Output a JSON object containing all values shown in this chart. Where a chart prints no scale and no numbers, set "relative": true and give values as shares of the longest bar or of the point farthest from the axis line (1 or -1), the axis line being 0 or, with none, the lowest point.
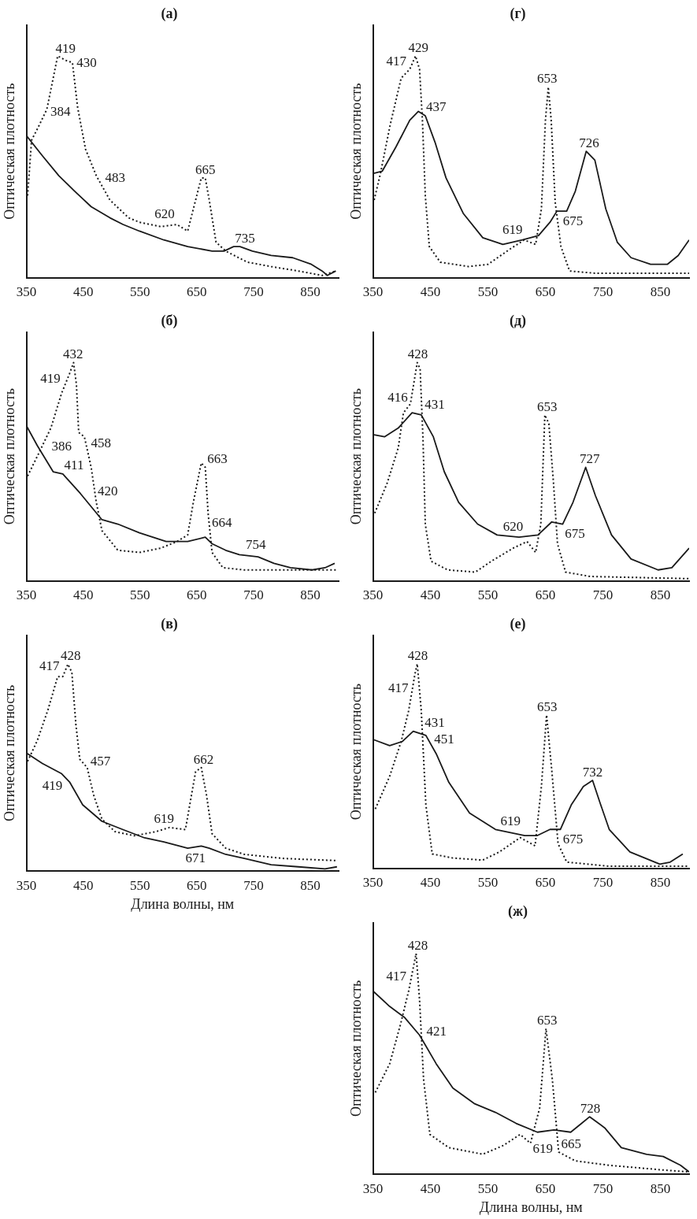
{
  "chart_data": [
    {
      "type": "line",
      "title": "(а)",
      "ylabel": "Оптическая плотность",
      "xlim": [
        350,
        900
      ],
      "xticks": [
        350,
        450,
        550,
        650,
        750,
        850
      ],
      "relative": true,
      "marker": "none",
      "series": [
        {
          "color": "#1a1a1a",
          "line_style": "dotted",
          "x": [
            352,
            359,
            371,
            386,
            405,
            419,
            431,
            440,
            454,
            473,
            497,
            530,
            549,
            587,
            615,
            634,
            648,
            658,
            665,
            672,
            684,
            701,
            739,
            781,
            829,
            871,
            895
          ],
          "values": [
            0.37,
            0.62,
            0.68,
            0.76,
            1,
            0.98,
            0.97,
            0.77,
            0.58,
            0.46,
            0.35,
            0.27,
            0.25,
            0.23,
            0.24,
            0.21,
            0.35,
            0.45,
            0.45,
            0.35,
            0.16,
            0.12,
            0.07,
            0.05,
            0.03,
            0.01,
            0.03
          ]
        },
        {
          "color": "#1a1a1a",
          "line_style": "solid",
          "x": [
            350,
            378,
            407,
            435,
            464,
            497,
            520,
            549,
            592,
            634,
            677,
            698,
            715,
            726,
            748,
            781,
            819,
            852,
            871,
            880,
            895
          ],
          "values": [
            0.64,
            0.55,
            0.46,
            0.39,
            0.32,
            0.27,
            0.24,
            0.21,
            0.17,
            0.14,
            0.12,
            0.12,
            0.14,
            0.14,
            0.12,
            0.1,
            0.09,
            0.06,
            0.03,
            0.01,
            0.03
          ]
        }
      ],
      "annotations": [
        {
          "text": "384",
          "x": 384,
          "y": 0.75
        },
        {
          "text": "419",
          "x": 419,
          "y": 0.98
        },
        {
          "text": "430",
          "x": 430,
          "y": 0.97
        },
        {
          "text": "483",
          "x": 483,
          "y": 0.42
        },
        {
          "text": "620",
          "x": 620,
          "y": 0.24
        },
        {
          "text": "665",
          "x": 665,
          "y": 0.45
        },
        {
          "text": "735",
          "x": 735,
          "y": 0.14
        }
      ]
    },
    {
      "type": "line",
      "title": "(б)",
      "ylabel": "Оптическая плотность",
      "xlim": [
        350,
        900
      ],
      "xticks": [
        350,
        450,
        550,
        650,
        750,
        850
      ],
      "relative": true,
      "marker": "none",
      "series": [
        {
          "color": "#1a1a1a",
          "line_style": "dotted",
          "x": [
            352,
            369,
            393,
            412,
            426,
            433,
            438,
            442,
            452,
            464,
            473,
            483,
            511,
            549,
            587,
            615,
            634,
            644,
            658,
            665,
            670,
            677,
            696,
            734,
            805,
            897
          ],
          "values": [
            0.48,
            0.57,
            0.7,
            0.86,
            0.95,
            1,
            0.9,
            0.68,
            0.66,
            0.52,
            0.36,
            0.23,
            0.14,
            0.13,
            0.15,
            0.18,
            0.21,
            0.36,
            0.54,
            0.52,
            0.31,
            0.13,
            0.06,
            0.05,
            0.05,
            0.05
          ]
        },
        {
          "color": "#1a1a1a",
          "line_style": "solid",
          "x": [
            350,
            369,
            397,
            414,
            445,
            483,
            511,
            549,
            596,
            634,
            665,
            677,
            701,
            725,
            758,
            786,
            815,
            853,
            876,
            893
          ],
          "values": [
            0.71,
            0.62,
            0.5,
            0.49,
            0.4,
            0.28,
            0.26,
            0.22,
            0.18,
            0.18,
            0.2,
            0.17,
            0.14,
            0.12,
            0.11,
            0.08,
            0.06,
            0.05,
            0.06,
            0.08
          ]
        }
      ],
      "annotations": [
        {
          "text": "386",
          "x": 386,
          "y": 0.62
        },
        {
          "text": "419",
          "x": 419,
          "y": 0.88
        },
        {
          "text": "432",
          "x": 432,
          "y": 1
        },
        {
          "text": "458",
          "x": 458,
          "y": 0.6
        },
        {
          "text": "411",
          "x": 411,
          "y": 0.5
        },
        {
          "text": "420",
          "x": 470,
          "y": 0.38
        },
        {
          "text": "663",
          "x": 663,
          "y": 0.53
        },
        {
          "text": "664",
          "x": 664,
          "y": 0.2
        },
        {
          "text": "754",
          "x": 754,
          "y": 0.11
        }
      ]
    },
    {
      "type": "line",
      "title": "(в)",
      "ylabel": "Оптическая плотность",
      "xlabel": "Длина волны, нм",
      "xlim": [
        350,
        900
      ],
      "xticks": [
        350,
        450,
        550,
        650,
        750,
        850
      ],
      "relative": true,
      "marker": "none",
      "series": [
        {
          "color": "#1a1a1a",
          "line_style": "dotted",
          "x": [
            352,
            369,
            388,
            405,
            414,
            423,
            430,
            437,
            444,
            457,
            468,
            483,
            506,
            540,
            578,
            602,
            630,
            639,
            648,
            658,
            667,
            677,
            701,
            734,
            805,
            897
          ],
          "values": [
            0.53,
            0.63,
            0.78,
            0.94,
            0.94,
            1,
            0.96,
            0.71,
            0.54,
            0.5,
            0.37,
            0.25,
            0.19,
            0.17,
            0.19,
            0.21,
            0.2,
            0.34,
            0.48,
            0.5,
            0.37,
            0.18,
            0.11,
            0.08,
            0.06,
            0.05
          ]
        },
        {
          "color": "#1a1a1a",
          "line_style": "solid",
          "x": [
            350,
            378,
            412,
            426,
            449,
            483,
            520,
            558,
            592,
            634,
            658,
            672,
            701,
            734,
            781,
            829,
            876,
            897
          ],
          "values": [
            0.57,
            0.52,
            0.47,
            0.43,
            0.32,
            0.24,
            0.2,
            0.16,
            0.14,
            0.11,
            0.12,
            0.11,
            0.08,
            0.06,
            0.03,
            0.02,
            0.01,
            0.02
          ]
        }
      ],
      "annotations": [
        {
          "text": "417",
          "x": 417,
          "y": 0.94
        },
        {
          "text": "428",
          "x": 428,
          "y": 1
        },
        {
          "text": "457",
          "x": 457,
          "y": 0.5
        },
        {
          "text": "419",
          "x": 419,
          "y": 0.46
        },
        {
          "text": "662",
          "x": 662,
          "y": 0.5
        },
        {
          "text": "619",
          "x": 619,
          "y": 0.2
        },
        {
          "text": "671",
          "x": 671,
          "y": 0.11
        }
      ]
    },
    {
      "type": "line",
      "title": "(г)",
      "ylabel": "Оптическая плотность",
      "xlim": [
        350,
        900
      ],
      "xticks": [
        350,
        450,
        550,
        650,
        750,
        850
      ],
      "relative": true,
      "marker": "none",
      "series": [
        {
          "color": "#1a1a1a",
          "line_style": "dotted",
          "x": [
            352,
            363,
            380,
            399,
            414,
            424,
            431,
            436,
            441,
            448,
            467,
            516,
            550,
            589,
            613,
            633,
            643,
            650,
            655,
            660,
            667,
            677,
            692,
            736,
            900
          ],
          "values": [
            0.35,
            0.47,
            0.69,
            0.9,
            0.94,
            1,
            0.94,
            0.71,
            0.37,
            0.14,
            0.07,
            0.05,
            0.06,
            0.13,
            0.17,
            0.15,
            0.31,
            0.71,
            0.86,
            0.71,
            0.34,
            0.14,
            0.03,
            0.02,
            0.02
          ]
        },
        {
          "color": "#1a1a1a",
          "line_style": "solid",
          "x": [
            350,
            366,
            390,
            414,
            429,
            441,
            458,
            477,
            507,
            541,
            576,
            610,
            638,
            658,
            670,
            687,
            702,
            721,
            736,
            755,
            775,
            799,
            833,
            862,
            881,
            900
          ],
          "values": [
            0.47,
            0.48,
            0.59,
            0.71,
            0.75,
            0.73,
            0.61,
            0.45,
            0.29,
            0.18,
            0.15,
            0.17,
            0.19,
            0.25,
            0.3,
            0.3,
            0.39,
            0.57,
            0.53,
            0.31,
            0.16,
            0.09,
            0.06,
            0.06,
            0.1,
            0.17
          ]
        }
      ],
      "annotations": [
        {
          "text": "417",
          "x": 417,
          "y": 0.93
        },
        {
          "text": "429",
          "x": 429,
          "y": 1
        },
        {
          "text": "437",
          "x": 437,
          "y": 0.74
        },
        {
          "text": "653",
          "x": 653,
          "y": 0.86
        },
        {
          "text": "675",
          "x": 675,
          "y": 0.3
        },
        {
          "text": "619",
          "x": 619,
          "y": 0.17
        },
        {
          "text": "726",
          "x": 726,
          "y": 0.57
        }
      ]
    },
    {
      "type": "line",
      "title": "(д)",
      "ylabel": "Оптическая плотность",
      "xlim": [
        350,
        900
      ],
      "xticks": [
        350,
        450,
        550,
        650,
        750,
        850
      ],
      "relative": true,
      "marker": "none",
      "series": [
        {
          "color": "#1a1a1a",
          "line_style": "dotted",
          "x": [
            353,
            375,
            394,
            403,
            415,
            427,
            432,
            437,
            441,
            451,
            480,
            528,
            556,
            594,
            618,
            633,
            642,
            649,
            656,
            664,
            671,
            685,
            728,
            900
          ],
          "values": [
            0.31,
            0.45,
            0.61,
            0.77,
            0.81,
            1,
            0.97,
            0.65,
            0.26,
            0.09,
            0.05,
            0.04,
            0.09,
            0.15,
            0.18,
            0.13,
            0.26,
            0.76,
            0.72,
            0.45,
            0.17,
            0.04,
            0.02,
            0.01
          ]
        },
        {
          "color": "#1a1a1a",
          "line_style": "solid",
          "x": [
            350,
            370,
            394,
            418,
            434,
            455,
            474,
            499,
            532,
            566,
            604,
            637,
            661,
            680,
            698,
            720,
            737,
            765,
            799,
            846,
            870,
            900
          ],
          "values": [
            0.67,
            0.66,
            0.7,
            0.77,
            0.76,
            0.66,
            0.5,
            0.36,
            0.26,
            0.21,
            0.2,
            0.21,
            0.27,
            0.26,
            0.36,
            0.52,
            0.39,
            0.21,
            0.1,
            0.05,
            0.06,
            0.15
          ]
        }
      ],
      "annotations": [
        {
          "text": "416",
          "x": 416,
          "y": 0.81
        },
        {
          "text": "428",
          "x": 428,
          "y": 1
        },
        {
          "text": "431",
          "x": 431,
          "y": 0.76
        },
        {
          "text": "653",
          "x": 653,
          "y": 0.76
        },
        {
          "text": "727",
          "x": 727,
          "y": 0.52
        },
        {
          "text": "675",
          "x": 675,
          "y": 0.27
        },
        {
          "text": "620",
          "x": 620,
          "y": 0.2
        }
      ]
    },
    {
      "type": "line",
      "title": "(е)",
      "ylabel": "Оптическая плотность",
      "xlim": [
        350,
        900
      ],
      "xticks": [
        350,
        450,
        550,
        650,
        750,
        850
      ],
      "relative": true,
      "marker": "none",
      "series": [
        {
          "color": "#1a1a1a",
          "line_style": "dotted",
          "x": [
            354,
            379,
            399,
            412,
            423,
            427,
            434,
            442,
            453,
            489,
            541,
            570,
            606,
            632,
            643,
            652,
            661,
            672,
            687,
            761,
            900
          ],
          "values": [
            0.29,
            0.45,
            0.62,
            0.77,
            0.95,
            1,
            0.77,
            0.31,
            0.07,
            0.05,
            0.04,
            0.08,
            0.15,
            0.11,
            0.4,
            0.75,
            0.48,
            0.12,
            0.03,
            0.01,
            0.01
          ]
        },
        {
          "color": "#1a1a1a",
          "line_style": "solid",
          "x": [
            350,
            379,
            401,
            420,
            442,
            460,
            482,
            518,
            563,
            614,
            636,
            658,
            676,
            695,
            716,
            732,
            745,
            761,
            797,
            849,
            867,
            889
          ],
          "values": [
            0.63,
            0.6,
            0.62,
            0.67,
            0.65,
            0.56,
            0.42,
            0.27,
            0.19,
            0.16,
            0.16,
            0.19,
            0.19,
            0.31,
            0.4,
            0.43,
            0.32,
            0.19,
            0.08,
            0.02,
            0.03,
            0.07
          ]
        }
      ],
      "annotations": [
        {
          "text": "417",
          "x": 417,
          "y": 0.85
        },
        {
          "text": "428",
          "x": 428,
          "y": 1
        },
        {
          "text": "431",
          "x": 431,
          "y": 0.66
        },
        {
          "text": "451",
          "x": 451,
          "y": 0.6
        },
        {
          "text": "653",
          "x": 653,
          "y": 0.75
        },
        {
          "text": "732",
          "x": 732,
          "y": 0.43
        },
        {
          "text": "675",
          "x": 675,
          "y": 0.19
        },
        {
          "text": "619",
          "x": 619,
          "y": 0.16
        }
      ]
    },
    {
      "type": "line",
      "title": "(ж)",
      "ylabel": "Оптическая плотность",
      "xlabel": "Длина волны, нм",
      "xlim": [
        350,
        900
      ],
      "xticks": [
        350,
        450,
        550,
        650,
        750,
        850
      ],
      "relative": true,
      "marker": "none",
      "series": [
        {
          "color": "#1a1a1a",
          "line_style": "dotted",
          "x": [
            354,
            379,
            398,
            412,
            425,
            431,
            438,
            449,
            482,
            541,
            577,
            606,
            624,
            640,
            651,
            662,
            673,
            702,
            761,
            849,
            900
          ],
          "values": [
            0.37,
            0.5,
            0.68,
            0.83,
            1,
            0.79,
            0.43,
            0.18,
            0.12,
            0.09,
            0.13,
            0.18,
            0.14,
            0.3,
            0.66,
            0.43,
            0.1,
            0.06,
            0.04,
            0.02,
            0.01
          ]
        },
        {
          "color": "#1a1a1a",
          "line_style": "solid",
          "x": [
            350,
            379,
            405,
            431,
            460,
            489,
            526,
            563,
            599,
            636,
            665,
            694,
            713,
            727,
            753,
            782,
            826,
            855,
            885,
            900
          ],
          "values": [
            0.83,
            0.76,
            0.71,
            0.63,
            0.5,
            0.39,
            0.32,
            0.28,
            0.23,
            0.19,
            0.2,
            0.19,
            0.23,
            0.26,
            0.21,
            0.12,
            0.09,
            0.08,
            0.04,
            0.01
          ]
        }
      ],
      "annotations": [
        {
          "text": "417",
          "x": 417,
          "y": 0.85
        },
        {
          "text": "428",
          "x": 428,
          "y": 1
        },
        {
          "text": "421",
          "x": 421,
          "y": 0.65
        },
        {
          "text": "653",
          "x": 653,
          "y": 0.66
        },
        {
          "text": "728",
          "x": 728,
          "y": 0.26
        },
        {
          "text": "665",
          "x": 665,
          "y": 0.2
        },
        {
          "text": "619",
          "x": 619,
          "y": 0.17
        }
      ]
    }
  ]
}
